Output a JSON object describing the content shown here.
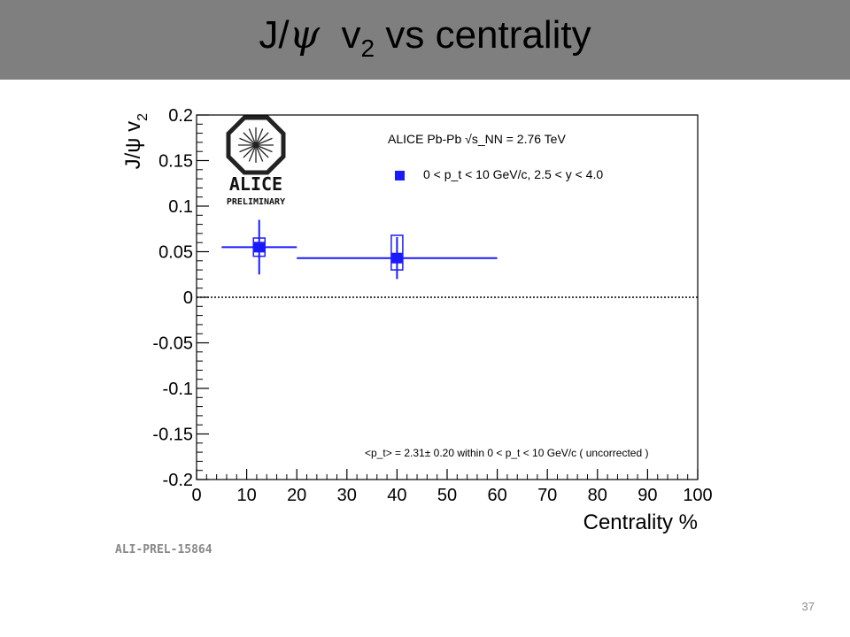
{
  "slide": {
    "title_main": "J/",
    "title_symbol": "ψ",
    "title_v": "v",
    "title_sub": "2",
    "title_rest": " vs centrality",
    "page_number": "37"
  },
  "logo": {
    "name": "ALICE",
    "tag": "PRELIMINARY"
  },
  "watermark": "ALI-PREL-15864",
  "colors": {
    "data": "#1a1aff",
    "axis": "#000000",
    "title_bar": "#7f7f7f"
  },
  "chart_data": {
    "type": "scatter",
    "xlabel": "Centrality %",
    "ylabel": "J/ψ v",
    "ylabel_sub": "2",
    "xlim": [
      0,
      100
    ],
    "ylim": [
      -0.2,
      0.2
    ],
    "x_ticks": [
      "0",
      "10",
      "20",
      "30",
      "40",
      "50",
      "60",
      "70",
      "80",
      "90",
      "100"
    ],
    "y_ticks": [
      "-0.2",
      "-0.15",
      "-0.1",
      "-0.05",
      "0",
      "0.05",
      "0.1",
      "0.15",
      "0.2"
    ],
    "legend_header": "ALICE Pb-Pb √s_NN = 2.76 TeV",
    "legend_entry": "0 < p_t < 10 GeV/c, 2.5 < y < 4.0",
    "annotation": "<p_t> = 2.31± 0.20 within 0 < p_t < 10 GeV/c ( uncorrected )",
    "reference_line": 0,
    "series": [
      {
        "points": [
          {
            "x": 12.5,
            "y": 0.055,
            "xlow": 5,
            "xhigh": 20,
            "yerr": 0.03,
            "sys_low": 0.045,
            "sys_high": 0.065
          },
          {
            "x": 40,
            "y": 0.043,
            "xlow": 20,
            "xhigh": 60,
            "yerr": 0.023,
            "sys_low": 0.03,
            "sys_high": 0.068
          }
        ]
      }
    ]
  }
}
